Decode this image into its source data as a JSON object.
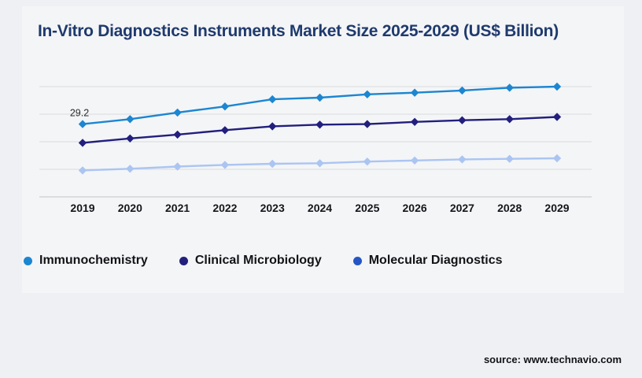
{
  "title": "In-Vitro Diagnostics Instruments Market Size 2025-2029 (US$ Billion)",
  "source": "source: www.technavio.com",
  "colors": {
    "background": "#eef0f4",
    "panel": "#f4f5f7",
    "title_text": "#1f3a6d",
    "grid_line": "#d9dade",
    "axis_line": "#c3c5cb",
    "label_text": "#15161a",
    "annotation_text": "#2b2b2b"
  },
  "chart_data": {
    "type": "line",
    "title": "In-Vitro Diagnostics Instruments Market Size 2025-2029 (US$ Billion)",
    "categories": [
      "2019",
      "2020",
      "2021",
      "2022",
      "2023",
      "2024",
      "2025",
      "2026",
      "2027",
      "2028",
      "2029"
    ],
    "series": [
      {
        "name": "Immunochemistry",
        "color": "#1c86d1",
        "legend_color": "#1c86d1",
        "values": [
          29.2,
          30.1,
          31.3,
          32.4,
          33.7,
          34.0,
          34.6,
          34.9,
          35.3,
          35.8,
          36.0
        ]
      },
      {
        "name": "Clinical Microbiology",
        "color": "#221f7d",
        "legend_color": "#221f7d",
        "values": [
          25.8,
          26.6,
          27.3,
          28.1,
          28.8,
          29.1,
          29.2,
          29.6,
          29.9,
          30.1,
          30.5
        ]
      },
      {
        "name": "Molecular Diagnostics",
        "color": "#abc5f2",
        "legend_color": "#2456c4",
        "values": [
          20.8,
          21.1,
          21.5,
          21.8,
          22.0,
          22.1,
          22.4,
          22.6,
          22.8,
          22.9,
          23.0
        ]
      }
    ],
    "xlabel": "",
    "ylabel": "",
    "ylim": [
      16,
      37
    ],
    "gridline_values": [
      16,
      21,
      26,
      31,
      36
    ],
    "y_axis_labels_shown": false,
    "grid": "horizontal",
    "legend_position": "bottom",
    "marker": "diamond",
    "data_label": {
      "series": "Immunochemistry",
      "category": "2019",
      "text": "29.2"
    }
  }
}
